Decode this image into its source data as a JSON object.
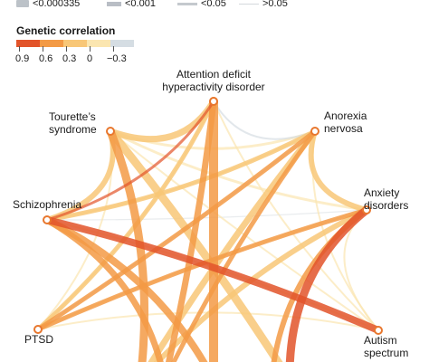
{
  "significance_legend": {
    "items": [
      {
        "label": "<0.000335",
        "style": "swatch",
        "color": "#bcc2c8"
      },
      {
        "label": "<0.001",
        "style": "thick-line",
        "color": "#b9bec5"
      },
      {
        "label": "<0.05",
        "style": "medium-line",
        "color": "#c4c9ce"
      },
      {
        "label": ">0.05",
        "style": "thin-line",
        "color": "#d4d8dc"
      }
    ]
  },
  "genetic_correlation_legend": {
    "title": "Genetic correlation",
    "ticks": [
      "0.9",
      "0.6",
      "0.3",
      "0",
      "−0.3"
    ],
    "colors": [
      "#e2542a",
      "#f39a45",
      "#f8c777",
      "#fbe6b0",
      "#d5dde3"
    ]
  },
  "disorders": [
    {
      "id": "adhd",
      "lines": [
        "Attention deficit",
        "hyperactivity disorder"
      ]
    },
    {
      "id": "anorexia",
      "lines": [
        "Anorexia",
        "nervosa"
      ]
    },
    {
      "id": "anxiety",
      "lines": [
        "Anxiety",
        "disorders"
      ]
    },
    {
      "id": "autism",
      "lines": [
        "Autism",
        "spectrum"
      ]
    },
    {
      "id": "ptsd",
      "lines": [
        "PTSD"
      ]
    },
    {
      "id": "schizophrenia",
      "lines": [
        "Schizophrenia"
      ]
    },
    {
      "id": "tourette",
      "lines": [
        "Tourette’s",
        "syndrome"
      ]
    }
  ],
  "palette": {
    "node_stroke": "#e8772e",
    "background": "#ffffff",
    "text": "#1a1a1a"
  }
}
